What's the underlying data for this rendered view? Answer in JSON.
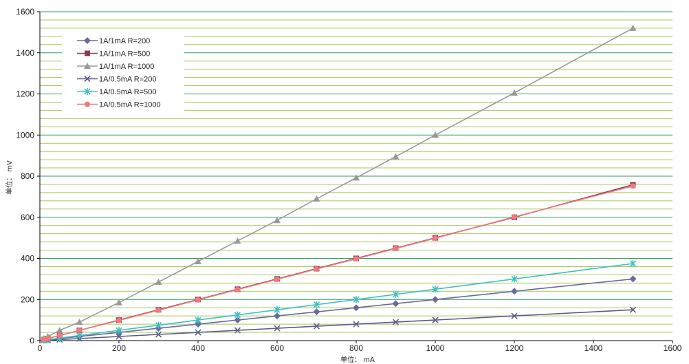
{
  "chart_data": {
    "type": "line",
    "title": "",
    "xlabel": "单位： mA",
    "ylabel": "单位： mV",
    "xlim": [
      0,
      1600
    ],
    "ylim": [
      0,
      1600
    ],
    "x_ticks": [
      0,
      200,
      400,
      600,
      800,
      1000,
      1200,
      1400,
      1600
    ],
    "y_ticks": [
      0,
      200,
      400,
      600,
      800,
      1000,
      1200,
      1400,
      1600
    ],
    "minor_grid_step": 40,
    "grid": true,
    "legend_position": "top-left",
    "x": [
      10,
      20,
      50,
      100,
      200,
      300,
      400,
      500,
      600,
      700,
      800,
      900,
      1000,
      1200,
      1500
    ],
    "series": [
      {
        "name": "1A/1mA  R=200",
        "color": "#6a6aa0",
        "marker": "diamond",
        "values": [
          2,
          4,
          10,
          20,
          40,
          60,
          80,
          100,
          120,
          140,
          160,
          180,
          200,
          240,
          300
        ]
      },
      {
        "name": "1A/1mA  R=500",
        "color": "#8a3a5a",
        "marker": "square",
        "values": [
          5,
          10,
          25,
          50,
          100,
          150,
          200,
          250,
          300,
          350,
          400,
          450,
          500,
          600,
          758
        ]
      },
      {
        "name": "1A/1mA  R=1000",
        "color": "#999999",
        "marker": "triangle",
        "values": [
          10,
          20,
          50,
          90,
          185,
          285,
          385,
          485,
          585,
          690,
          792,
          895,
          1000,
          1205,
          1520
        ]
      },
      {
        "name": "1A/0.5mA  R=200",
        "color": "#5a5a88",
        "marker": "x",
        "values": [
          1,
          2,
          5,
          10,
          20,
          30,
          40,
          50,
          60,
          70,
          80,
          90,
          100,
          120,
          150
        ]
      },
      {
        "name": "1A/0.5mA  R=500",
        "color": "#40c0c0",
        "marker": "star",
        "values": [
          2.5,
          5,
          12.5,
          25,
          50,
          75,
          100,
          125,
          150,
          175,
          200,
          225,
          250,
          300,
          375
        ]
      },
      {
        "name": "1A/0.5mA  R=1000",
        "color": "#f07a7a",
        "marker": "circle",
        "values": [
          5,
          10,
          25,
          50,
          98,
          148,
          198,
          248,
          298,
          348,
          398,
          448,
          498,
          602,
          752
        ]
      }
    ],
    "colors": {
      "major_grid": "#2e9e5a",
      "minor_grid": "#a4c85a",
      "axis": "#000000"
    }
  }
}
